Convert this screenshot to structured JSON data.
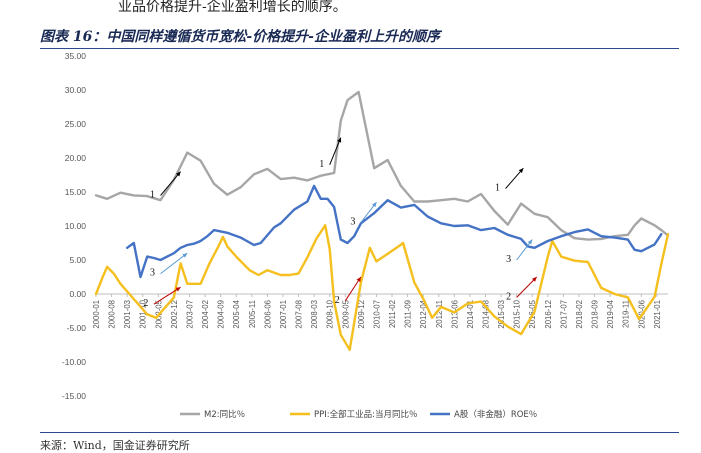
{
  "header": {
    "top_text": "业品价格提升-企业盈利增长的顺序。",
    "figure_title": "图表 16：中国同样遵循货币宽松-价格提升-企业盈利上升的顺序",
    "source": "来源：Wind，国金证券研究所"
  },
  "chart_data": {
    "type": "line",
    "ylim": [
      -15,
      35
    ],
    "yticks": [
      "35.00",
      "30.00",
      "25.00",
      "20.00",
      "15.00",
      "10.00",
      "5.00",
      "0.00",
      "-5.00",
      "-10.00",
      "-15.00"
    ],
    "ytick_values": [
      35,
      30,
      25,
      20,
      15,
      10,
      5,
      0,
      -5,
      -10,
      -15
    ],
    "xlim": [
      "2000-01",
      "2021-06"
    ],
    "x_tick_labels": [
      "2000-01",
      "2000-08",
      "2001-03",
      "2001-10",
      "2002-05",
      "2002-12",
      "2003-07",
      "2004-02",
      "2004-09",
      "2005-04",
      "2005-11",
      "2006-06",
      "2007-01",
      "2007-08",
      "2008-03",
      "2008-10",
      "2009-05",
      "2009-12",
      "2010-07",
      "2011-02",
      "2011-09",
      "2012-04",
      "2012-11",
      "2013-06",
      "2014-01",
      "2014-08",
      "2015-03",
      "2015-10",
      "2016-05",
      "2016-12",
      "2017-07",
      "2018-02",
      "2018-09",
      "2019-04",
      "2019-11",
      "2020-06",
      "2021-01"
    ],
    "grid": false,
    "legend_position": "bottom",
    "series": [
      {
        "name": "M2:同比％",
        "color": "#a6a6a6",
        "points": [
          [
            "2000-01",
            14.5
          ],
          [
            "2000-06",
            14.0
          ],
          [
            "2000-12",
            14.9
          ],
          [
            "2001-06",
            14.5
          ],
          [
            "2001-12",
            14.4
          ],
          [
            "2002-06",
            13.8
          ],
          [
            "2002-12",
            16.8
          ],
          [
            "2003-06",
            20.8
          ],
          [
            "2003-12",
            19.6
          ],
          [
            "2004-06",
            16.2
          ],
          [
            "2004-12",
            14.6
          ],
          [
            "2005-06",
            15.7
          ],
          [
            "2005-12",
            17.6
          ],
          [
            "2006-06",
            18.4
          ],
          [
            "2006-12",
            16.9
          ],
          [
            "2007-06",
            17.1
          ],
          [
            "2007-12",
            16.7
          ],
          [
            "2008-06",
            17.4
          ],
          [
            "2008-12",
            17.8
          ],
          [
            "2009-03",
            25.5
          ],
          [
            "2009-06",
            28.5
          ],
          [
            "2009-11",
            29.7
          ],
          [
            "2010-06",
            18.5
          ],
          [
            "2010-12",
            19.7
          ],
          [
            "2011-06",
            15.9
          ],
          [
            "2011-12",
            13.6
          ],
          [
            "2012-06",
            13.6
          ],
          [
            "2012-12",
            13.8
          ],
          [
            "2013-06",
            14.0
          ],
          [
            "2013-12",
            13.6
          ],
          [
            "2014-06",
            14.7
          ],
          [
            "2014-12",
            12.2
          ],
          [
            "2015-06",
            10.2
          ],
          [
            "2015-12",
            13.3
          ],
          [
            "2016-06",
            11.8
          ],
          [
            "2016-12",
            11.3
          ],
          [
            "2017-06",
            9.4
          ],
          [
            "2017-12",
            8.2
          ],
          [
            "2018-06",
            8.0
          ],
          [
            "2018-12",
            8.1
          ],
          [
            "2019-06",
            8.5
          ],
          [
            "2019-12",
            8.7
          ],
          [
            "2020-03",
            10.1
          ],
          [
            "2020-06",
            11.1
          ],
          [
            "2020-12",
            10.1
          ],
          [
            "2021-03",
            9.4
          ],
          [
            "2021-06",
            8.6
          ]
        ]
      },
      {
        "name": "PPI:全部工业品:当月同比％",
        "color": "#f5bf1e",
        "points": [
          [
            "2000-01",
            0.0
          ],
          [
            "2000-04",
            2.5
          ],
          [
            "2000-06",
            4.0
          ],
          [
            "2000-09",
            3.0
          ],
          [
            "2000-12",
            1.5
          ],
          [
            "2001-04",
            0.0
          ],
          [
            "2001-08",
            -1.5
          ],
          [
            "2001-12",
            -3.0
          ],
          [
            "2002-04",
            -3.5
          ],
          [
            "2002-08",
            -2.0
          ],
          [
            "2002-12",
            -0.5
          ],
          [
            "2003-03",
            4.5
          ],
          [
            "2003-06",
            1.5
          ],
          [
            "2003-12",
            1.5
          ],
          [
            "2004-04",
            4.5
          ],
          [
            "2004-08",
            7.0
          ],
          [
            "2004-10",
            8.4
          ],
          [
            "2004-12",
            7.0
          ],
          [
            "2005-04",
            5.5
          ],
          [
            "2005-10",
            3.5
          ],
          [
            "2006-02",
            2.8
          ],
          [
            "2006-06",
            3.5
          ],
          [
            "2006-12",
            2.8
          ],
          [
            "2007-04",
            2.8
          ],
          [
            "2007-08",
            3.0
          ],
          [
            "2007-12",
            5.4
          ],
          [
            "2008-04",
            8.1
          ],
          [
            "2008-08",
            10.1
          ],
          [
            "2008-10",
            6.6
          ],
          [
            "2008-12",
            -1.1
          ],
          [
            "2009-03",
            -6.0
          ],
          [
            "2009-07",
            -8.2
          ],
          [
            "2009-12",
            1.7
          ],
          [
            "2010-04",
            6.8
          ],
          [
            "2010-07",
            4.8
          ],
          [
            "2010-12",
            5.9
          ],
          [
            "2011-04",
            6.8
          ],
          [
            "2011-07",
            7.5
          ],
          [
            "2011-12",
            1.7
          ],
          [
            "2012-04",
            -0.7
          ],
          [
            "2012-08",
            -3.5
          ],
          [
            "2012-12",
            -1.9
          ],
          [
            "2013-06",
            -2.7
          ],
          [
            "2013-12",
            -1.4
          ],
          [
            "2014-06",
            -1.1
          ],
          [
            "2014-12",
            -3.3
          ],
          [
            "2015-06",
            -4.8
          ],
          [
            "2015-12",
            -5.9
          ],
          [
            "2016-06",
            -2.6
          ],
          [
            "2016-12",
            5.5
          ],
          [
            "2017-02",
            7.8
          ],
          [
            "2017-06",
            5.5
          ],
          [
            "2017-12",
            4.9
          ],
          [
            "2018-06",
            4.7
          ],
          [
            "2018-12",
            0.9
          ],
          [
            "2019-06",
            0.0
          ],
          [
            "2019-12",
            -0.5
          ],
          [
            "2020-05",
            -3.7
          ],
          [
            "2020-12",
            -0.4
          ],
          [
            "2021-03",
            4.4
          ],
          [
            "2021-06",
            8.8
          ]
        ]
      },
      {
        "name": "A股（非金融）ROE％",
        "color": "#4472c4",
        "points": [
          [
            "2001-03",
            6.8
          ],
          [
            "2001-06",
            7.5
          ],
          [
            "2001-09",
            2.5
          ],
          [
            "2001-12",
            5.5
          ],
          [
            "2002-03",
            5.3
          ],
          [
            "2002-06",
            5.0
          ],
          [
            "2002-09",
            5.5
          ],
          [
            "2002-12",
            6.0
          ],
          [
            "2003-03",
            6.8
          ],
          [
            "2003-06",
            7.2
          ],
          [
            "2003-09",
            7.4
          ],
          [
            "2003-12",
            7.8
          ],
          [
            "2004-03",
            8.5
          ],
          [
            "2004-06",
            9.4
          ],
          [
            "2004-12",
            9.0
          ],
          [
            "2005-06",
            8.3
          ],
          [
            "2005-12",
            7.2
          ],
          [
            "2006-03",
            7.5
          ],
          [
            "2006-09",
            9.8
          ],
          [
            "2006-12",
            10.4
          ],
          [
            "2007-06",
            12.4
          ],
          [
            "2007-12",
            13.6
          ],
          [
            "2008-03",
            15.9
          ],
          [
            "2008-06",
            14.0
          ],
          [
            "2008-09",
            14.0
          ],
          [
            "2008-12",
            12.8
          ],
          [
            "2009-03",
            8.0
          ],
          [
            "2009-06",
            7.5
          ],
          [
            "2009-09",
            8.5
          ],
          [
            "2009-12",
            10.4
          ],
          [
            "2010-06",
            11.9
          ],
          [
            "2010-12",
            13.8
          ],
          [
            "2011-06",
            12.7
          ],
          [
            "2011-12",
            13.1
          ],
          [
            "2012-06",
            11.4
          ],
          [
            "2012-12",
            10.4
          ],
          [
            "2013-06",
            10.0
          ],
          [
            "2013-12",
            10.1
          ],
          [
            "2014-06",
            9.4
          ],
          [
            "2014-12",
            9.7
          ],
          [
            "2015-06",
            8.7
          ],
          [
            "2015-12",
            8.1
          ],
          [
            "2016-03",
            7.0
          ],
          [
            "2016-06",
            6.8
          ],
          [
            "2016-12",
            7.8
          ],
          [
            "2017-06",
            8.5
          ],
          [
            "2017-12",
            9.1
          ],
          [
            "2018-06",
            9.5
          ],
          [
            "2018-12",
            8.5
          ],
          [
            "2019-06",
            8.3
          ],
          [
            "2019-12",
            8.0
          ],
          [
            "2020-03",
            6.5
          ],
          [
            "2020-06",
            6.3
          ],
          [
            "2020-12",
            7.3
          ],
          [
            "2021-03",
            8.8
          ]
        ]
      }
    ],
    "annotations": [
      {
        "label": "1",
        "color": "#000000",
        "from": [
          "2002-06",
          14.5
        ],
        "to": [
          "2003-03",
          18.0
        ]
      },
      {
        "label": "1",
        "color": "#000000",
        "from": [
          "2008-10",
          19.0
        ],
        "to": [
          "2009-03",
          23.0
        ]
      },
      {
        "label": "1",
        "color": "#000000",
        "from": [
          "2015-05",
          15.5
        ],
        "to": [
          "2016-01",
          18.5
        ]
      },
      {
        "label": "2",
        "color": "#c00000",
        "from": [
          "2002-03",
          -1.5
        ],
        "to": [
          "2003-03",
          1.0
        ]
      },
      {
        "label": "2",
        "color": "#c00000",
        "from": [
          "2009-05",
          -1.0
        ],
        "to": [
          "2009-12",
          2.5
        ]
      },
      {
        "label": "2",
        "color": "#c00000",
        "from": [
          "2015-10",
          -0.5
        ],
        "to": [
          "2016-07",
          2.5
        ]
      },
      {
        "label": "3",
        "color": "#5b9bd5",
        "from": [
          "2002-06",
          3.0
        ],
        "to": [
          "2003-06",
          6.0
        ]
      },
      {
        "label": "3",
        "color": "#5b9bd5",
        "from": [
          "2009-12",
          10.5
        ],
        "to": [
          "2010-07",
          13.5
        ]
      },
      {
        "label": "3",
        "color": "#5b9bd5",
        "from": [
          "2015-10",
          5.0
        ],
        "to": [
          "2016-05",
          8.0
        ]
      }
    ]
  }
}
